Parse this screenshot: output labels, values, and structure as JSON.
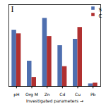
{
  "chart_data": {
    "type": "bar",
    "categories": [
      "pH",
      "Org M",
      "Zn",
      "Cd",
      "Cu",
      "Pb"
    ],
    "series": [
      {
        "name": "S",
        "color": "#4f6faf",
        "values": [
          0.62,
          0.28,
          0.75,
          0.45,
          0.52,
          0.03
        ]
      },
      {
        "name": "C",
        "color": "#b03030",
        "values": [
          0.58,
          0.1,
          0.55,
          0.22,
          0.65,
          0.04
        ]
      }
    ],
    "xlabel": "Investigated parameters",
    "annotation": "I",
    "ylim": [
      0,
      0.9
    ],
    "legend": "upper right",
    "tick_labels": "x"
  }
}
